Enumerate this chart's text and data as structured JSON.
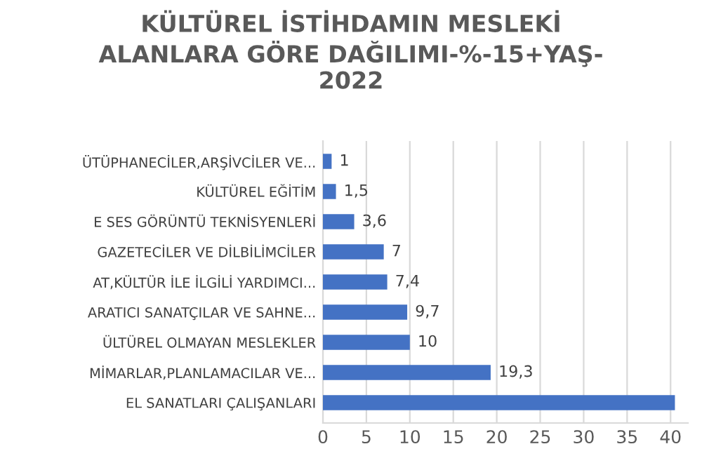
{
  "chart_data": {
    "type": "bar",
    "orientation": "horizontal",
    "title": "KÜLTÜREL İSTİHDAMIN MESLEKİ\nALANLARA GÖRE DAĞILIMI-%-15+YAŞ-\n2022",
    "categories": [
      "ÜTÜPHANECİLER,ARŞİVCİLER VE...",
      "KÜLTÜREL EĞİTİM",
      "E SES GÖRÜNTÜ TEKNİSYENLERİ",
      "GAZETECİLER VE DİLBİLİMCİLER",
      "AT,KÜLTÜR İLE İLGİLİ YARDIMCI...",
      "ARATICI SANATÇILAR VE SAHNE...",
      "ÜLTÜREL OLMAYAN MESLEKLER",
      "MİMARLAR,PLANLAMACILAR VE...",
      "EL SANATLARI ÇALIŞANLARI"
    ],
    "values": [
      1,
      1.5,
      3.6,
      7,
      7.4,
      9.7,
      10,
      19.3,
      40.5
    ],
    "value_labels": [
      "1",
      "1,5",
      "3,6",
      "7",
      "7,4",
      "9,7",
      "10",
      "19,3",
      null
    ],
    "color": "#4472c4",
    "xlim": [
      0,
      42
    ],
    "xticks": [
      0,
      5,
      10,
      15,
      20,
      25,
      30,
      35,
      40
    ],
    "grid": "x"
  }
}
